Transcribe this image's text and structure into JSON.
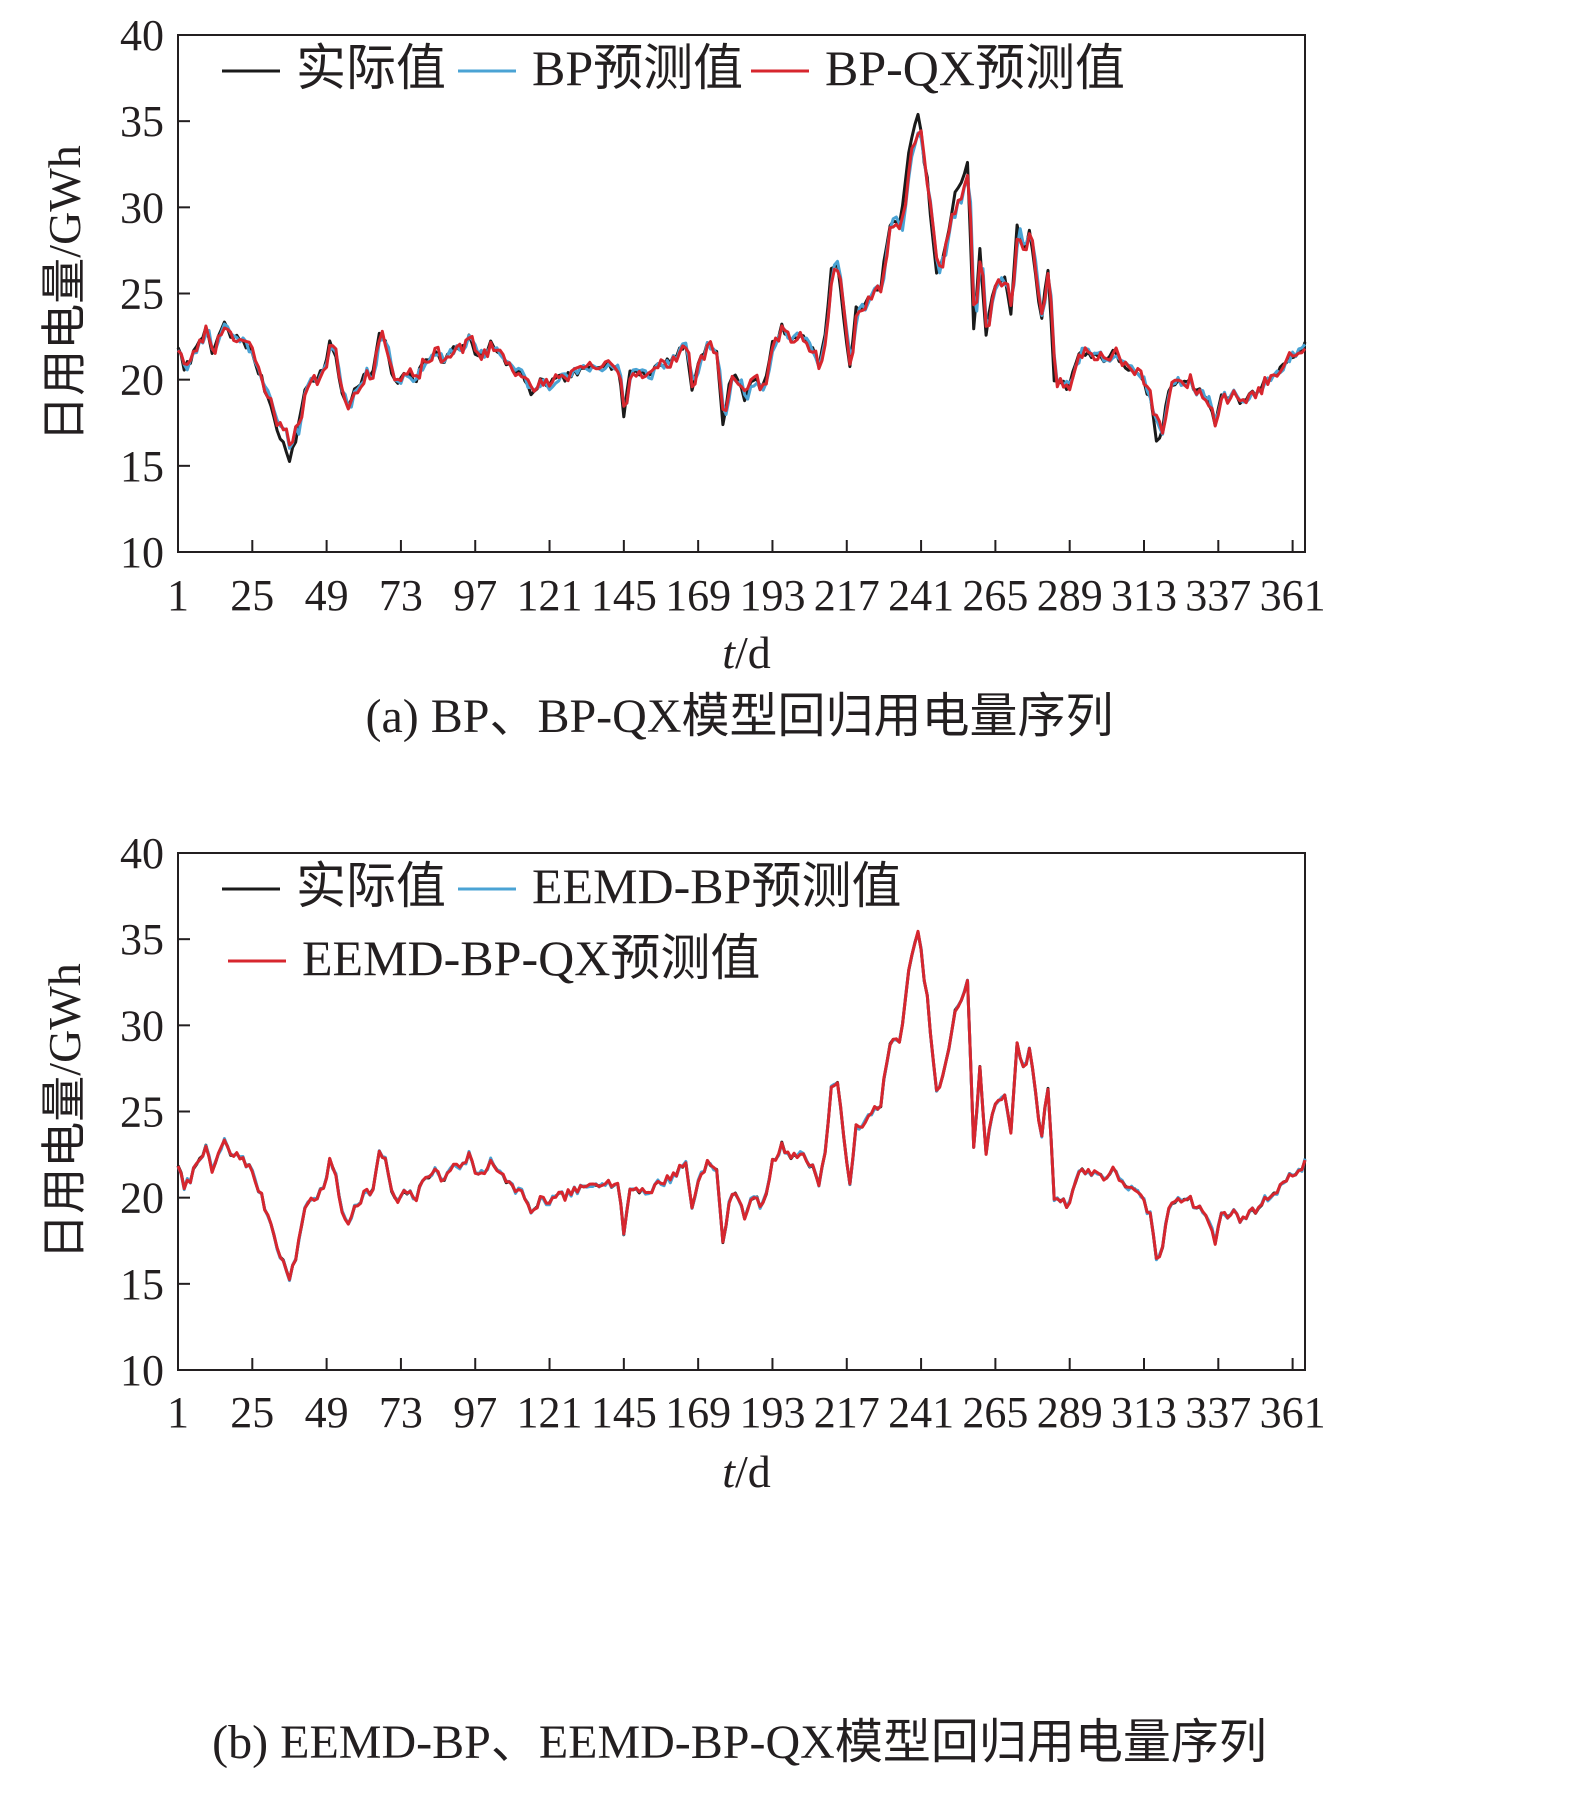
{
  "chart_data": [
    {
      "type": "line",
      "caption": "(a) BP、BP-QX模型回归用电量序列",
      "xlabel_italic": "t",
      "xlabel_rest": "/d",
      "ylabel": "日用电量/GWh",
      "xlim": [
        1,
        365
      ],
      "ylim": [
        10,
        40
      ],
      "x_ticks": [
        "1",
        "25",
        "49",
        "73",
        "97",
        "121",
        "145",
        "169",
        "193",
        "217",
        "241",
        "265",
        "289",
        "313",
        "337",
        "361"
      ],
      "y_ticks": [
        "10",
        "15",
        "20",
        "25",
        "30",
        "35",
        "40"
      ],
      "legend_position": "top-left",
      "series": [
        {
          "name": "实际值",
          "color": "#1a1a1a",
          "variant": "actual"
        },
        {
          "name": "BP预测值",
          "color": "#4aa3d4",
          "variant": "bp"
        },
        {
          "name": "BP-QX预测值",
          "color": "#d7262e",
          "variant": "bpqx"
        }
      ],
      "actual_keypoints": [
        [
          1,
          22.0
        ],
        [
          3,
          20.5
        ],
        [
          6,
          21.5
        ],
        [
          8,
          22.5
        ],
        [
          10,
          22.8
        ],
        [
          12,
          21.5
        ],
        [
          14,
          22.5
        ],
        [
          16,
          23.2
        ],
        [
          18,
          22.5
        ],
        [
          22,
          22.3
        ],
        [
          24,
          21.8
        ],
        [
          26,
          21.0
        ],
        [
          28,
          20.0
        ],
        [
          30,
          19.0
        ],
        [
          32,
          18.0
        ],
        [
          34,
          16.5
        ],
        [
          36,
          16.0
        ],
        [
          37,
          15.2
        ],
        [
          39,
          16.5
        ],
        [
          42,
          19.5
        ],
        [
          45,
          20.0
        ],
        [
          48,
          20.5
        ],
        [
          50,
          22.0
        ],
        [
          52,
          21.5
        ],
        [
          54,
          19.0
        ],
        [
          56,
          18.5
        ],
        [
          58,
          19.5
        ],
        [
          61,
          20.2
        ],
        [
          64,
          20.5
        ],
        [
          66,
          22.5
        ],
        [
          68,
          22.3
        ],
        [
          70,
          20.2
        ],
        [
          72,
          19.8
        ],
        [
          75,
          20.3
        ],
        [
          78,
          20.0
        ],
        [
          81,
          21.3
        ],
        [
          84,
          21.5
        ],
        [
          87,
          21.0
        ],
        [
          90,
          22.0
        ],
        [
          93,
          21.8
        ],
        [
          95,
          22.5
        ],
        [
          97,
          21.5
        ],
        [
          100,
          21.5
        ],
        [
          102,
          22.3
        ],
        [
          104,
          21.5
        ],
        [
          107,
          21.0
        ],
        [
          110,
          20.5
        ],
        [
          112,
          20.3
        ],
        [
          114,
          19.5
        ],
        [
          116,
          19.2
        ],
        [
          118,
          19.8
        ],
        [
          121,
          19.8
        ],
        [
          124,
          20.0
        ],
        [
          128,
          20.3
        ],
        [
          132,
          20.5
        ],
        [
          135,
          20.8
        ],
        [
          138,
          21.0
        ],
        [
          141,
          20.8
        ],
        [
          143,
          20.8
        ],
        [
          145,
          18.0
        ],
        [
          147,
          20.5
        ],
        [
          150,
          20.5
        ],
        [
          153,
          20.3
        ],
        [
          156,
          20.8
        ],
        [
          159,
          21.0
        ],
        [
          162,
          21.5
        ],
        [
          165,
          22.0
        ],
        [
          167,
          19.5
        ],
        [
          170,
          21.5
        ],
        [
          172,
          22.0
        ],
        [
          175,
          21.5
        ],
        [
          177,
          17.5
        ],
        [
          179,
          19.5
        ],
        [
          181,
          20.5
        ],
        [
          184,
          19.0
        ],
        [
          187,
          20.0
        ],
        [
          190,
          19.5
        ],
        [
          193,
          22.0
        ],
        [
          196,
          23.0
        ],
        [
          199,
          22.5
        ],
        [
          202,
          22.5
        ],
        [
          205,
          22.0
        ],
        [
          208,
          21.0
        ],
        [
          210,
          22.5
        ],
        [
          212,
          26.5
        ],
        [
          214,
          26.5
        ],
        [
          216,
          23.5
        ],
        [
          218,
          21.0
        ],
        [
          220,
          24.0
        ],
        [
          222,
          24.0
        ],
        [
          225,
          25.0
        ],
        [
          228,
          25.5
        ],
        [
          231,
          29.0
        ],
        [
          234,
          29.0
        ],
        [
          237,
          33.0
        ],
        [
          240,
          35.5
        ],
        [
          243,
          31.5
        ],
        [
          246,
          26.0
        ],
        [
          248,
          27.0
        ],
        [
          250,
          28.5
        ],
        [
          252,
          31.0
        ],
        [
          254,
          31.5
        ],
        [
          256,
          32.5
        ],
        [
          258,
          23.0
        ],
        [
          260,
          27.5
        ],
        [
          262,
          22.5
        ],
        [
          264,
          25.0
        ],
        [
          266,
          25.5
        ],
        [
          268,
          26.0
        ],
        [
          270,
          24.0
        ],
        [
          272,
          29.0
        ],
        [
          274,
          27.5
        ],
        [
          276,
          28.5
        ],
        [
          278,
          26.0
        ],
        [
          280,
          23.5
        ],
        [
          282,
          26.5
        ],
        [
          284,
          20.0
        ],
        [
          286,
          20.0
        ],
        [
          288,
          19.5
        ],
        [
          290,
          20.5
        ],
        [
          292,
          21.5
        ],
        [
          294,
          21.5
        ],
        [
          297,
          21.5
        ],
        [
          300,
          21.2
        ],
        [
          303,
          21.5
        ],
        [
          306,
          21.0
        ],
        [
          309,
          20.5
        ],
        [
          312,
          20.0
        ],
        [
          315,
          19.0
        ],
        [
          317,
          16.5
        ],
        [
          319,
          17.0
        ],
        [
          321,
          19.5
        ],
        [
          324,
          20.0
        ],
        [
          327,
          20.0
        ],
        [
          330,
          19.5
        ],
        [
          333,
          19.0
        ],
        [
          336,
          17.5
        ],
        [
          338,
          19.0
        ],
        [
          341,
          19.2
        ],
        [
          344,
          18.8
        ],
        [
          347,
          19.0
        ],
        [
          350,
          19.5
        ],
        [
          353,
          20.0
        ],
        [
          356,
          20.5
        ],
        [
          359,
          21.0
        ],
        [
          362,
          21.5
        ],
        [
          365,
          22.0
        ]
      ]
    },
    {
      "type": "line",
      "caption": "(b) EEMD-BP、EEMD-BP-QX模型回归用电量序列",
      "xlabel_italic": "t",
      "xlabel_rest": "/d",
      "ylabel": "日用电量/GWh",
      "xlim": [
        1,
        365
      ],
      "ylim": [
        10,
        40
      ],
      "x_ticks": [
        "1",
        "25",
        "49",
        "73",
        "97",
        "121",
        "145",
        "169",
        "193",
        "217",
        "241",
        "265",
        "289",
        "313",
        "337",
        "361"
      ],
      "y_ticks": [
        "10",
        "15",
        "20",
        "25",
        "30",
        "35",
        "40"
      ],
      "legend_position": "top-left",
      "series": [
        {
          "name": "实际值",
          "color": "#1a1a1a",
          "variant": "actual"
        },
        {
          "name": "EEMD-BP预测值",
          "color": "#4aa3d4",
          "variant": "eemd"
        },
        {
          "name": "EEMD-BP-QX预测值",
          "color": "#d7262e",
          "variant": "eemdqx"
        }
      ]
    }
  ]
}
